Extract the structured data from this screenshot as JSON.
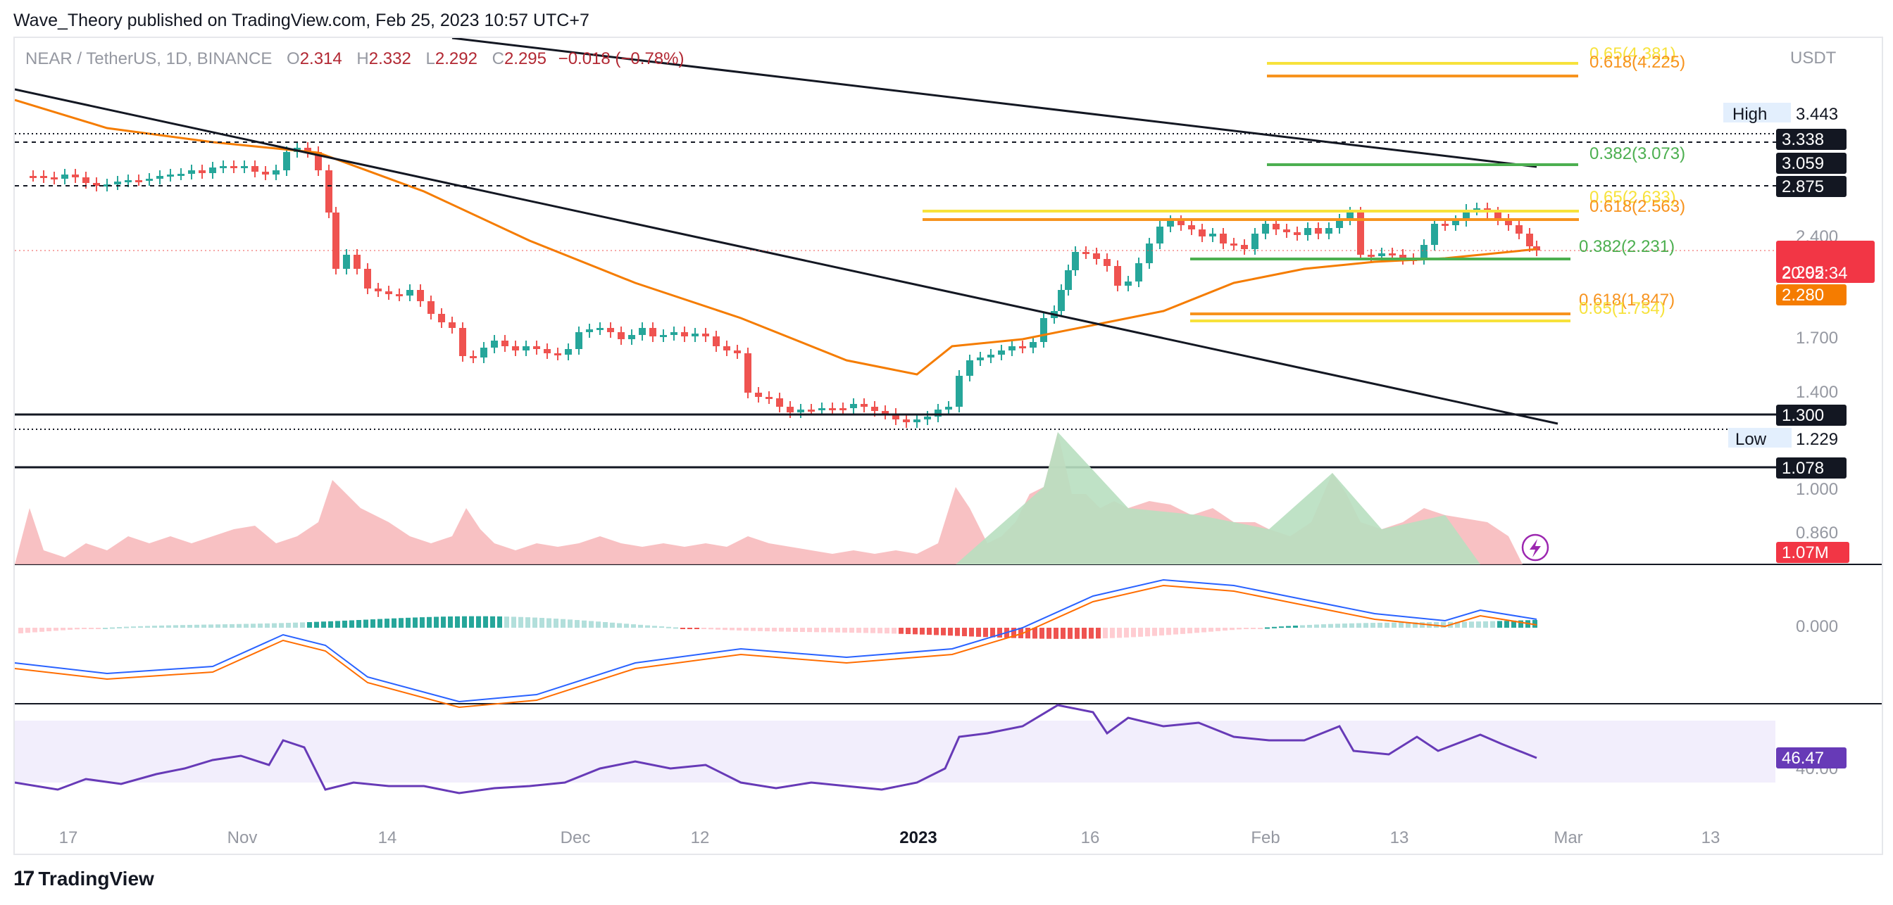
{
  "header": {
    "published": "Wave_Theory published on TradingView.com, Feb 25, 2023 10:57 UTC+7"
  },
  "legend": {
    "symbol": "NEAR / TetherUS, 1D, BINANCE",
    "open_label": "O",
    "open": "2.314",
    "high_label": "H",
    "high": "2.332",
    "low_label": "L",
    "low": "2.292",
    "close_label": "C",
    "close": "2.295",
    "change": "−0.018 (−0.78%)"
  },
  "currency": "USDT",
  "price_axis": {
    "ticks": [
      "2.400",
      "1.700",
      "1.400",
      "1.000",
      "0.860"
    ],
    "high_label": "High",
    "high_value": "3.443",
    "low_label": "Low",
    "low_value": "1.229",
    "levels_black": [
      "3.338",
      "3.059",
      "2.875",
      "1.300",
      "1.078"
    ],
    "last_price": "2.295",
    "countdown": "20:02:34",
    "ema_value": "2.280",
    "volume_value": "1.07M",
    "macd_zero": "0.000",
    "rsi_value": "46.47",
    "rsi_hidden": "40.00"
  },
  "fib_labels": {
    "f_065_top": "0.65(4.381)",
    "f_0618_top": "0.618(4.225)",
    "f_0382_top": "0.382(3.073)",
    "f_065_mid": "0.65(2.633)",
    "f_0618_mid": "0.618(2.563)",
    "f_0382_mid": "0.382(2.231)",
    "f_0618_low": "0.618(1.847)",
    "f_065_low": "0.65(1.754)"
  },
  "time_axis": [
    "17",
    "Nov",
    "14",
    "Dec",
    "12",
    "2023",
    "16",
    "Feb",
    "13",
    "Mar",
    "13"
  ],
  "footer": {
    "brand": "TradingView"
  },
  "colors": {
    "up": "#26a69a",
    "down": "#ef5350",
    "ema": "#f57c00",
    "fib_yellow": "#f7e23b",
    "fib_orange": "#f7931e",
    "fib_green": "#4caf50",
    "rsi": "#673ab7",
    "macd": "#2962ff",
    "signal": "#ff6d00"
  }
}
